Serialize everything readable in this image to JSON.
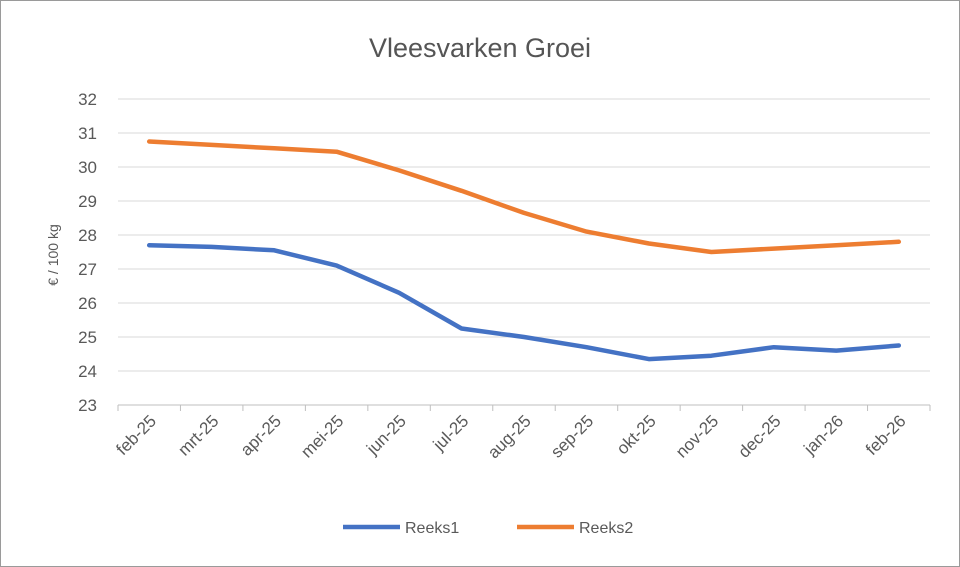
{
  "chart_data": {
    "type": "line",
    "title": "Vleesvarken Groei",
    "xlabel": "",
    "ylabel": "€ / 100 kg",
    "categories": [
      "feb-25",
      "mrt-25",
      "apr-25",
      "mei-25",
      "jun-25",
      "jul-25",
      "aug-25",
      "sep-25",
      "okt-25",
      "nov-25",
      "dec-25",
      "jan-26",
      "feb-26"
    ],
    "ylim": [
      23,
      32
    ],
    "yticks": [
      "23",
      "24",
      "25",
      "26",
      "27",
      "28",
      "29",
      "30",
      "31",
      "32"
    ],
    "grid": true,
    "legend_position": "bottom",
    "series": [
      {
        "name": "Reeks1",
        "color": "#4472C4",
        "values": [
          27.7,
          27.65,
          27.55,
          27.1,
          26.3,
          25.25,
          25.0,
          24.7,
          24.35,
          24.45,
          24.7,
          24.6,
          24.75
        ]
      },
      {
        "name": "Reeks2",
        "color": "#ED7D31",
        "values": [
          30.75,
          30.65,
          30.55,
          30.45,
          29.9,
          29.3,
          28.65,
          28.1,
          27.75,
          27.5,
          27.6,
          27.7,
          27.8
        ]
      }
    ]
  }
}
